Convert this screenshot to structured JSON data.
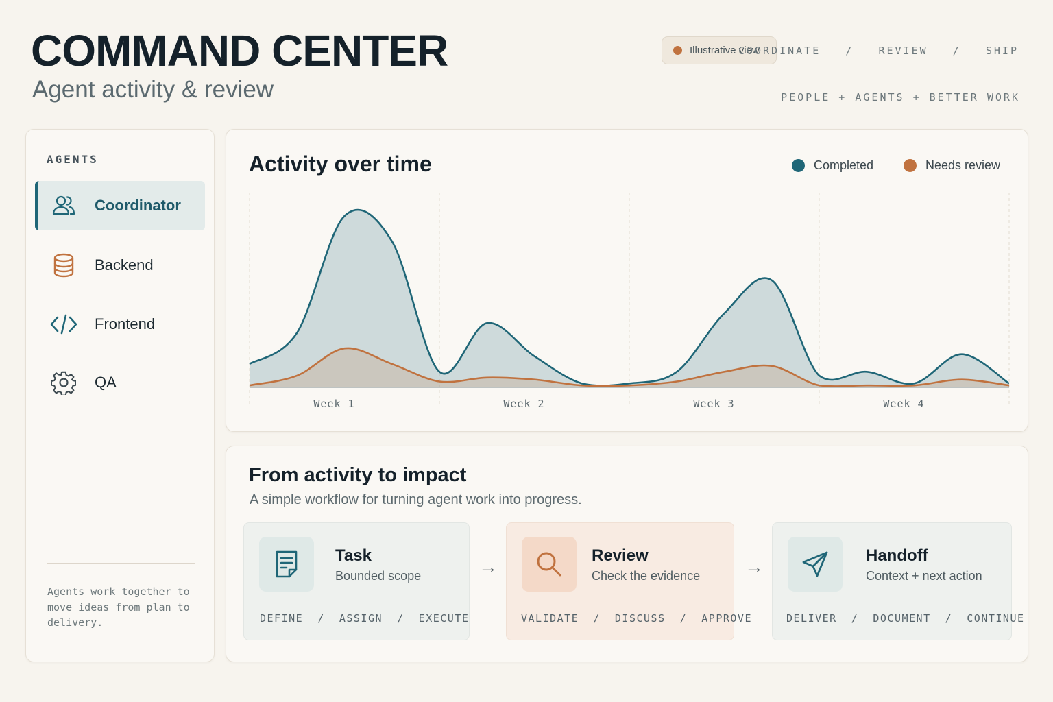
{
  "header": {
    "title": "COMMAND CENTER",
    "subtitle": "Agent activity & review",
    "pill_label": "Illustrative view",
    "nav": [
      "COORDINATE",
      "REVIEW",
      "SHIP"
    ],
    "tagline": "PEOPLE + AGENTS + BETTER WORK"
  },
  "sidebar": {
    "heading": "AGENTS",
    "items": [
      {
        "label": "Coordinator",
        "icon": "users-icon",
        "active": true
      },
      {
        "label": "Backend",
        "icon": "database-icon",
        "active": false
      },
      {
        "label": "Frontend",
        "icon": "code-icon",
        "active": false
      },
      {
        "label": "QA",
        "icon": "gear-icon",
        "active": false
      }
    ],
    "note": "Agents work together to move ideas from plan to delivery."
  },
  "chart": {
    "title": "Activity over time",
    "legend": [
      {
        "label": "Completed",
        "color": "#1f6677"
      },
      {
        "label": "Needs review",
        "color": "#c0723f"
      }
    ]
  },
  "chart_data": {
    "type": "area",
    "title": "Activity over time",
    "categories": [
      "Week 1",
      "Week 2",
      "Week 3",
      "Week 4"
    ],
    "x": [
      0,
      0.25,
      0.5,
      0.75,
      1,
      1.25,
      1.5,
      1.75,
      2,
      2.25,
      2.5,
      2.75,
      3,
      3.25,
      3.5,
      3.75,
      4
    ],
    "series": [
      {
        "name": "Completed",
        "color": "#1f6677",
        "values": [
          12,
          28,
          88,
          75,
          8,
          33,
          16,
          2,
          2,
          8,
          38,
          55,
          6,
          8,
          2,
          17,
          2
        ]
      },
      {
        "name": "Needs review",
        "color": "#c0723f",
        "values": [
          1,
          6,
          20,
          12,
          3,
          5,
          4,
          1,
          1,
          3,
          8,
          11,
          1,
          1,
          1,
          4,
          1
        ]
      }
    ],
    "grid": "vertical-dashed",
    "ylim": [
      0,
      100
    ]
  },
  "impact": {
    "title": "From activity to impact",
    "subtitle": "A simple workflow for turning agent work into progress.",
    "steps": [
      {
        "title": "Task",
        "desc": "Bounded scope",
        "tags": "DEFINE  /  ASSIGN  /  EXECUTE",
        "icon": "document-icon"
      },
      {
        "title": "Review",
        "desc": "Check the evidence",
        "tags": "VALIDATE  /  DISCUSS  /  APPROVE",
        "icon": "magnifier-icon"
      },
      {
        "title": "Handoff",
        "desc": "Context + next action",
        "tags": "DELIVER  /  DOCUMENT  /  CONTINUE",
        "icon": "send-icon"
      }
    ],
    "arrow": "→"
  },
  "colors": {
    "accent_teal": "#1f6677",
    "accent_orange": "#c0723f",
    "background": "#f7f4ee"
  }
}
